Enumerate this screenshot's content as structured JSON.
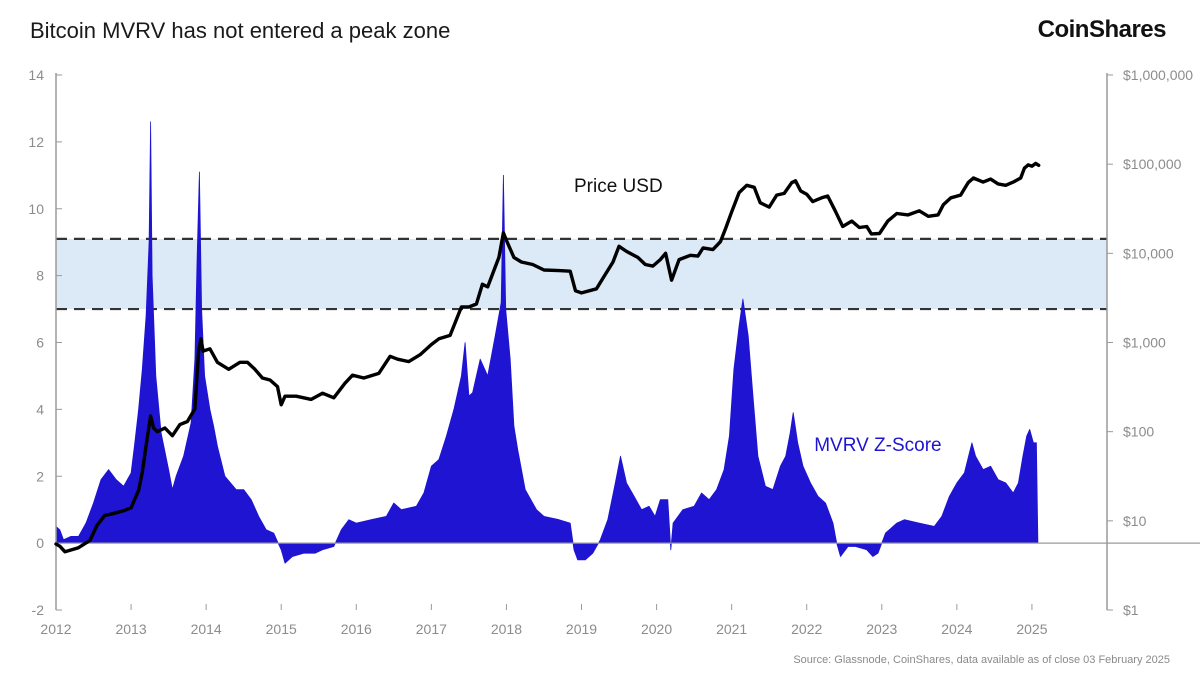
{
  "header": {
    "title": "Bitcoin MVRV has not entered a peak zone",
    "logo": "CoinShares"
  },
  "footer": {
    "source": "Source: Glassnode, CoinShares, data available as of close 03 February 2025"
  },
  "colors": {
    "zscore": "#1e14d2",
    "price": "#000000",
    "band_fill": "#dce9f7",
    "band_line": "#333333",
    "axis": "#9a9a9a"
  },
  "chart_data": {
    "type": "area",
    "title": "Bitcoin MVRV has not entered a peak zone",
    "x": {
      "range": [
        2012.0,
        2026.0
      ],
      "ticks": [
        "2012",
        "2013",
        "2014",
        "2015",
        "2016",
        "2017",
        "2018",
        "2019",
        "2020",
        "2021",
        "2022",
        "2023",
        "2024",
        "2025"
      ]
    },
    "y_left": {
      "range": [
        -2,
        14
      ],
      "ticks": [
        "-2",
        "0",
        "2",
        "4",
        "6",
        "8",
        "10",
        "12",
        "14"
      ]
    },
    "y_right": {
      "scale": "log",
      "range": [
        1,
        1000000
      ],
      "ticks": [
        "$1",
        "$10",
        "$100",
        "$1,000",
        "$10,000",
        "$100,000",
        "$1,000,000"
      ]
    },
    "peak_zone": {
      "from": 7.0,
      "to": 9.1
    },
    "series": [
      {
        "name": "MVRV Z-Score",
        "axis": "left",
        "points": [
          [
            2012.0,
            0.5
          ],
          [
            2012.05,
            0.4
          ],
          [
            2012.1,
            0.1
          ],
          [
            2012.2,
            0.2
          ],
          [
            2012.3,
            0.2
          ],
          [
            2012.4,
            0.6
          ],
          [
            2012.5,
            1.2
          ],
          [
            2012.6,
            1.9
          ],
          [
            2012.7,
            2.2
          ],
          [
            2012.8,
            1.9
          ],
          [
            2012.9,
            1.7
          ],
          [
            2013.0,
            2.1
          ],
          [
            2013.05,
            3.0
          ],
          [
            2013.1,
            4.0
          ],
          [
            2013.15,
            5.2
          ],
          [
            2013.2,
            6.8
          ],
          [
            2013.24,
            9.0
          ],
          [
            2013.26,
            12.6
          ],
          [
            2013.28,
            8.0
          ],
          [
            2013.33,
            5.0
          ],
          [
            2013.4,
            3.3
          ],
          [
            2013.5,
            2.2
          ],
          [
            2013.55,
            1.6
          ],
          [
            2013.6,
            2.0
          ],
          [
            2013.7,
            2.6
          ],
          [
            2013.8,
            3.6
          ],
          [
            2013.85,
            5.5
          ],
          [
            2013.88,
            8.5
          ],
          [
            2013.91,
            11.1
          ],
          [
            2013.94,
            7.0
          ],
          [
            2013.98,
            5.0
          ],
          [
            2014.05,
            4.0
          ],
          [
            2014.1,
            3.5
          ],
          [
            2014.15,
            2.9
          ],
          [
            2014.25,
            2.0
          ],
          [
            2014.4,
            1.6
          ],
          [
            2014.5,
            1.6
          ],
          [
            2014.6,
            1.3
          ],
          [
            2014.7,
            0.8
          ],
          [
            2014.8,
            0.4
          ],
          [
            2014.9,
            0.3
          ],
          [
            2015.0,
            -0.2
          ],
          [
            2015.05,
            -0.6
          ],
          [
            2015.15,
            -0.4
          ],
          [
            2015.3,
            -0.3
          ],
          [
            2015.45,
            -0.3
          ],
          [
            2015.55,
            -0.2
          ],
          [
            2015.7,
            -0.1
          ],
          [
            2015.8,
            0.4
          ],
          [
            2015.9,
            0.7
          ],
          [
            2016.0,
            0.6
          ],
          [
            2016.2,
            0.7
          ],
          [
            2016.4,
            0.8
          ],
          [
            2016.5,
            1.2
          ],
          [
            2016.6,
            1.0
          ],
          [
            2016.8,
            1.1
          ],
          [
            2016.9,
            1.5
          ],
          [
            2017.0,
            2.3
          ],
          [
            2017.1,
            2.5
          ],
          [
            2017.2,
            3.2
          ],
          [
            2017.3,
            4.0
          ],
          [
            2017.4,
            5.0
          ],
          [
            2017.45,
            6.0
          ],
          [
            2017.5,
            4.4
          ],
          [
            2017.55,
            4.5
          ],
          [
            2017.65,
            5.5
          ],
          [
            2017.75,
            5.0
          ],
          [
            2017.85,
            6.2
          ],
          [
            2017.93,
            7.2
          ],
          [
            2017.96,
            11.0
          ],
          [
            2017.99,
            7.0
          ],
          [
            2018.05,
            5.5
          ],
          [
            2018.1,
            3.5
          ],
          [
            2018.15,
            2.8
          ],
          [
            2018.25,
            1.6
          ],
          [
            2018.4,
            1.0
          ],
          [
            2018.5,
            0.8
          ],
          [
            2018.7,
            0.7
          ],
          [
            2018.85,
            0.6
          ],
          [
            2018.9,
            -0.2
          ],
          [
            2018.95,
            -0.5
          ],
          [
            2019.05,
            -0.5
          ],
          [
            2019.15,
            -0.3
          ],
          [
            2019.25,
            0.1
          ],
          [
            2019.35,
            0.7
          ],
          [
            2019.45,
            1.8
          ],
          [
            2019.52,
            2.6
          ],
          [
            2019.6,
            1.8
          ],
          [
            2019.7,
            1.4
          ],
          [
            2019.8,
            1.0
          ],
          [
            2019.9,
            1.1
          ],
          [
            2019.98,
            0.8
          ],
          [
            2020.05,
            1.3
          ],
          [
            2020.15,
            1.3
          ],
          [
            2020.19,
            -0.2
          ],
          [
            2020.22,
            0.6
          ],
          [
            2020.35,
            1.0
          ],
          [
            2020.5,
            1.1
          ],
          [
            2020.6,
            1.5
          ],
          [
            2020.7,
            1.3
          ],
          [
            2020.8,
            1.6
          ],
          [
            2020.9,
            2.2
          ],
          [
            2020.97,
            3.2
          ],
          [
            2021.03,
            5.2
          ],
          [
            2021.1,
            6.5
          ],
          [
            2021.15,
            7.3
          ],
          [
            2021.22,
            6.2
          ],
          [
            2021.28,
            4.5
          ],
          [
            2021.35,
            2.6
          ],
          [
            2021.45,
            1.7
          ],
          [
            2021.55,
            1.6
          ],
          [
            2021.65,
            2.3
          ],
          [
            2021.72,
            2.6
          ],
          [
            2021.78,
            3.3
          ],
          [
            2021.82,
            3.9
          ],
          [
            2021.88,
            3.0
          ],
          [
            2021.95,
            2.3
          ],
          [
            2022.05,
            1.8
          ],
          [
            2022.15,
            1.4
          ],
          [
            2022.25,
            1.2
          ],
          [
            2022.35,
            0.6
          ],
          [
            2022.4,
            0.0
          ],
          [
            2022.45,
            -0.4
          ],
          [
            2022.55,
            -0.1
          ],
          [
            2022.65,
            -0.1
          ],
          [
            2022.8,
            -0.2
          ],
          [
            2022.88,
            -0.4
          ],
          [
            2022.95,
            -0.3
          ],
          [
            2023.05,
            0.3
          ],
          [
            2023.2,
            0.6
          ],
          [
            2023.3,
            0.7
          ],
          [
            2023.5,
            0.6
          ],
          [
            2023.7,
            0.5
          ],
          [
            2023.8,
            0.8
          ],
          [
            2023.9,
            1.4
          ],
          [
            2024.0,
            1.8
          ],
          [
            2024.1,
            2.1
          ],
          [
            2024.2,
            3.0
          ],
          [
            2024.25,
            2.6
          ],
          [
            2024.35,
            2.2
          ],
          [
            2024.45,
            2.3
          ],
          [
            2024.55,
            1.9
          ],
          [
            2024.65,
            1.8
          ],
          [
            2024.75,
            1.5
          ],
          [
            2024.82,
            1.8
          ],
          [
            2024.88,
            2.6
          ],
          [
            2024.93,
            3.2
          ],
          [
            2024.97,
            3.4
          ],
          [
            2025.02,
            3.0
          ],
          [
            2025.06,
            3.0
          ],
          [
            2025.08,
            0.0
          ]
        ]
      },
      {
        "name": "Price USD",
        "axis": "right",
        "points": [
          [
            2012.0,
            5.5
          ],
          [
            2012.05,
            5.2
          ],
          [
            2012.12,
            4.5
          ],
          [
            2012.3,
            5.0
          ],
          [
            2012.45,
            6.0
          ],
          [
            2012.55,
            9.0
          ],
          [
            2012.65,
            11.5
          ],
          [
            2012.75,
            12.0
          ],
          [
            2012.9,
            13.0
          ],
          [
            2013.0,
            14.0
          ],
          [
            2013.1,
            22
          ],
          [
            2013.15,
            35
          ],
          [
            2013.2,
            70
          ],
          [
            2013.26,
            150
          ],
          [
            2013.3,
            110
          ],
          [
            2013.35,
            100
          ],
          [
            2013.45,
            110
          ],
          [
            2013.55,
            90
          ],
          [
            2013.65,
            120
          ],
          [
            2013.75,
            130
          ],
          [
            2013.85,
            180
          ],
          [
            2013.9,
            800
          ],
          [
            2013.93,
            1100
          ],
          [
            2013.96,
            800
          ],
          [
            2014.05,
            850
          ],
          [
            2014.15,
            600
          ],
          [
            2014.3,
            500
          ],
          [
            2014.45,
            600
          ],
          [
            2014.55,
            600
          ],
          [
            2014.65,
            500
          ],
          [
            2014.75,
            400
          ],
          [
            2014.85,
            380
          ],
          [
            2014.95,
            320
          ],
          [
            2015.0,
            200
          ],
          [
            2015.05,
            250
          ],
          [
            2015.2,
            250
          ],
          [
            2015.4,
            230
          ],
          [
            2015.55,
            270
          ],
          [
            2015.7,
            240
          ],
          [
            2015.85,
            350
          ],
          [
            2015.95,
            430
          ],
          [
            2016.1,
            400
          ],
          [
            2016.3,
            450
          ],
          [
            2016.45,
            700
          ],
          [
            2016.55,
            650
          ],
          [
            2016.7,
            610
          ],
          [
            2016.85,
            730
          ],
          [
            2017.0,
            950
          ],
          [
            2017.1,
            1100
          ],
          [
            2017.25,
            1200
          ],
          [
            2017.4,
            2500
          ],
          [
            2017.5,
            2500
          ],
          [
            2017.6,
            2700
          ],
          [
            2017.68,
            4500
          ],
          [
            2017.75,
            4200
          ],
          [
            2017.82,
            6000
          ],
          [
            2017.9,
            9000
          ],
          [
            2017.96,
            17000
          ],
          [
            2018.0,
            14000
          ],
          [
            2018.1,
            9000
          ],
          [
            2018.2,
            8000
          ],
          [
            2018.35,
            7500
          ],
          [
            2018.5,
            6500
          ],
          [
            2018.7,
            6400
          ],
          [
            2018.85,
            6300
          ],
          [
            2018.92,
            3800
          ],
          [
            2019.0,
            3600
          ],
          [
            2019.2,
            4000
          ],
          [
            2019.3,
            5500
          ],
          [
            2019.42,
            8000
          ],
          [
            2019.5,
            12000
          ],
          [
            2019.6,
            10500
          ],
          [
            2019.75,
            9000
          ],
          [
            2019.85,
            7500
          ],
          [
            2019.95,
            7200
          ],
          [
            2020.05,
            8500
          ],
          [
            2020.12,
            10000
          ],
          [
            2020.2,
            5000
          ],
          [
            2020.3,
            8500
          ],
          [
            2020.45,
            9500
          ],
          [
            2020.55,
            9300
          ],
          [
            2020.62,
            11500
          ],
          [
            2020.75,
            11000
          ],
          [
            2020.85,
            13500
          ],
          [
            2020.92,
            19000
          ],
          [
            2021.0,
            29000
          ],
          [
            2021.1,
            48000
          ],
          [
            2021.2,
            58000
          ],
          [
            2021.3,
            55000
          ],
          [
            2021.38,
            37000
          ],
          [
            2021.5,
            33000
          ],
          [
            2021.6,
            45000
          ],
          [
            2021.7,
            47000
          ],
          [
            2021.8,
            62000
          ],
          [
            2021.85,
            65000
          ],
          [
            2021.92,
            50000
          ],
          [
            2022.0,
            46000
          ],
          [
            2022.08,
            38000
          ],
          [
            2022.2,
            42000
          ],
          [
            2022.28,
            44000
          ],
          [
            2022.38,
            30000
          ],
          [
            2022.48,
            20000
          ],
          [
            2022.6,
            23000
          ],
          [
            2022.7,
            19500
          ],
          [
            2022.8,
            20000
          ],
          [
            2022.86,
            16500
          ],
          [
            2022.97,
            16700
          ],
          [
            2023.08,
            23000
          ],
          [
            2023.2,
            28000
          ],
          [
            2023.35,
            27000
          ],
          [
            2023.5,
            30000
          ],
          [
            2023.62,
            26000
          ],
          [
            2023.75,
            27000
          ],
          [
            2023.82,
            35000
          ],
          [
            2023.92,
            42000
          ],
          [
            2024.05,
            45000
          ],
          [
            2024.15,
            62000
          ],
          [
            2024.22,
            70000
          ],
          [
            2024.35,
            63000
          ],
          [
            2024.45,
            68000
          ],
          [
            2024.55,
            60000
          ],
          [
            2024.65,
            58000
          ],
          [
            2024.75,
            63000
          ],
          [
            2024.85,
            70000
          ],
          [
            2024.9,
            90000
          ],
          [
            2024.95,
            98000
          ],
          [
            2025.0,
            95000
          ],
          [
            2025.05,
            102000
          ],
          [
            2025.09,
            97000
          ]
        ]
      }
    ],
    "annotations": [
      {
        "text": "Price USD",
        "at": [
          2018.9,
          10.5
        ],
        "color": "#111111"
      },
      {
        "text": "MVRV Z-Score",
        "at": [
          2022.1,
          2.75
        ],
        "color": "#1e14d2"
      }
    ],
    "grid": false,
    "legend": "none"
  }
}
